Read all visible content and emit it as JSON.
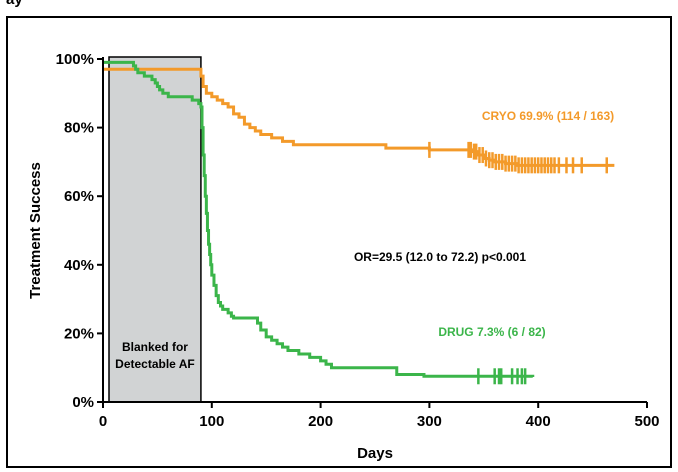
{
  "chart_data": {
    "type": "line",
    "clipped_heading": "ay",
    "xlabel": "Days",
    "ylabel": "Treatment Success",
    "xlim": [
      0,
      500
    ],
    "ylim": [
      0,
      100
    ],
    "x_ticks": [
      0,
      100,
      200,
      300,
      400,
      500
    ],
    "x_tick_labels": [
      "0",
      "100",
      "200",
      "300",
      "400",
      "500"
    ],
    "y_ticks": [
      0,
      20,
      40,
      60,
      80,
      100
    ],
    "y_tick_labels": [
      "0%",
      "20%",
      "40%",
      "60%",
      "80%",
      "100%"
    ],
    "blanking_period": {
      "x_start": 0,
      "x_end": 90,
      "label_line1": "Blanked for",
      "label_line2": "Detectable AF",
      "fill": "#d1d3d4"
    },
    "series": [
      {
        "name": "CRYO",
        "color": "#f39a2a",
        "label": "CRYO 69.9% (114 / 163)",
        "points": [
          [
            0,
            97
          ],
          [
            90,
            97
          ],
          [
            90,
            95
          ],
          [
            92,
            92
          ],
          [
            95,
            90
          ],
          [
            100,
            89
          ],
          [
            105,
            88
          ],
          [
            110,
            87
          ],
          [
            115,
            86
          ],
          [
            120,
            84
          ],
          [
            125,
            83
          ],
          [
            130,
            81
          ],
          [
            135,
            80
          ],
          [
            140,
            79
          ],
          [
            145,
            78
          ],
          [
            155,
            77
          ],
          [
            165,
            76
          ],
          [
            175,
            75
          ],
          [
            250,
            75
          ],
          [
            260,
            74
          ],
          [
            300,
            73.5
          ],
          [
            340,
            73
          ],
          [
            345,
            72
          ],
          [
            350,
            71
          ],
          [
            355,
            70.5
          ],
          [
            360,
            70
          ],
          [
            370,
            69.5
          ],
          [
            380,
            69
          ],
          [
            470,
            69
          ]
        ],
        "censor_x": [
          300,
          336,
          338,
          341,
          343,
          346,
          349,
          352,
          355,
          358,
          361,
          364,
          367,
          370,
          373,
          376,
          379,
          382,
          385,
          388,
          391,
          394,
          397,
          400,
          403,
          406,
          409,
          412,
          415,
          419,
          426,
          432,
          440,
          463
        ]
      },
      {
        "name": "DRUG",
        "color": "#3bb54a",
        "label": "DRUG 7.3% (6 / 82)",
        "points": [
          [
            0,
            99
          ],
          [
            28,
            99
          ],
          [
            28,
            98
          ],
          [
            30,
            97
          ],
          [
            32,
            96
          ],
          [
            38,
            95
          ],
          [
            45,
            94
          ],
          [
            48,
            93
          ],
          [
            50,
            92
          ],
          [
            52,
            91
          ],
          [
            55,
            90
          ],
          [
            60,
            89
          ],
          [
            80,
            89
          ],
          [
            82,
            88
          ],
          [
            88,
            87
          ],
          [
            90,
            86
          ],
          [
            91,
            80
          ],
          [
            92,
            72
          ],
          [
            93,
            66
          ],
          [
            94,
            60
          ],
          [
            95,
            55
          ],
          [
            96,
            50
          ],
          [
            97,
            46
          ],
          [
            98,
            43
          ],
          [
            99,
            40
          ],
          [
            100,
            37
          ],
          [
            102,
            34
          ],
          [
            104,
            31
          ],
          [
            106,
            29
          ],
          [
            108,
            28
          ],
          [
            110,
            27
          ],
          [
            115,
            26
          ],
          [
            118,
            25
          ],
          [
            120,
            24.5
          ],
          [
            140,
            24.5
          ],
          [
            142,
            23
          ],
          [
            145,
            21
          ],
          [
            150,
            19
          ],
          [
            155,
            18
          ],
          [
            160,
            17
          ],
          [
            165,
            16
          ],
          [
            170,
            15
          ],
          [
            180,
            14
          ],
          [
            190,
            13
          ],
          [
            200,
            12
          ],
          [
            205,
            11
          ],
          [
            210,
            10
          ],
          [
            265,
            10
          ],
          [
            270,
            8
          ],
          [
            295,
            7.5
          ],
          [
            395,
            7.3
          ]
        ],
        "censor_x": [
          345,
          360,
          364,
          366,
          376,
          381,
          385,
          388
        ]
      }
    ],
    "annotation": "OR=29.5 (12.0 to 72.2) p<0.001"
  }
}
